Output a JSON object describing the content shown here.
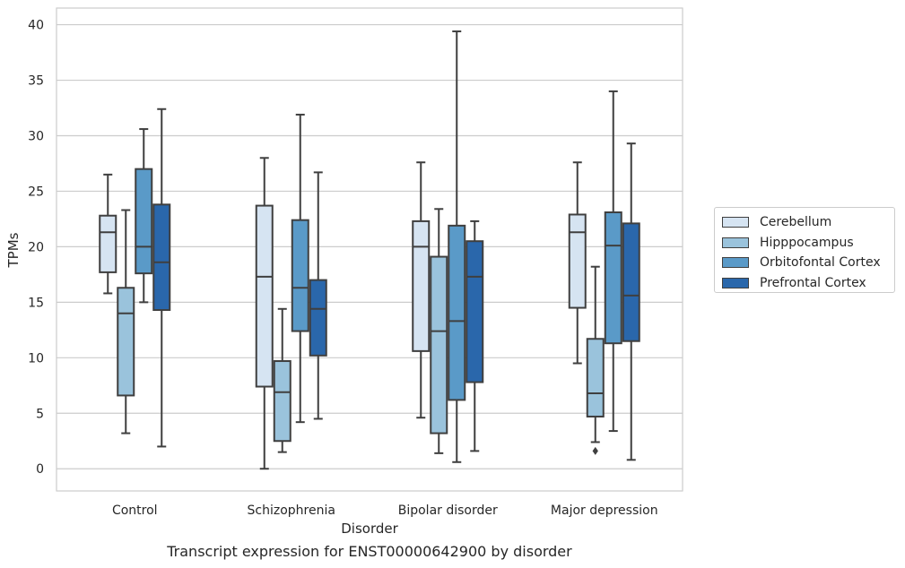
{
  "caption": "Transcript expression for ENST00000642900 by disorder",
  "chart_data": {
    "type": "boxplot",
    "xlabel": "Disorder",
    "ylabel": "TPMs",
    "ylim": [
      -2,
      41.5
    ],
    "yticks": [
      0,
      5,
      10,
      15,
      20,
      25,
      30,
      35,
      40
    ],
    "grid": "horizontal",
    "legend_position": "right",
    "categories": [
      "Control",
      "Schizophrenia",
      "Bipolar disorder",
      "Major depression"
    ],
    "series": [
      {
        "name": "Cerebellum",
        "color": "#d6e4f2",
        "boxes": [
          {
            "whisker_low": 15.8,
            "q1": 17.7,
            "median": 21.3,
            "q3": 22.8,
            "whisker_high": 26.5,
            "outliers": []
          },
          {
            "whisker_low": 0.0,
            "q1": 7.4,
            "median": 17.3,
            "q3": 23.7,
            "whisker_high": 28.0,
            "outliers": []
          },
          {
            "whisker_low": 4.6,
            "q1": 10.6,
            "median": 20.0,
            "q3": 22.3,
            "whisker_high": 27.6,
            "outliers": []
          },
          {
            "whisker_low": 9.5,
            "q1": 14.5,
            "median": 21.3,
            "q3": 22.9,
            "whisker_high": 27.6,
            "outliers": []
          }
        ]
      },
      {
        "name": "Hipppocampus",
        "color": "#9ac3dc",
        "boxes": [
          {
            "whisker_low": 3.2,
            "q1": 6.6,
            "median": 14.0,
            "q3": 16.3,
            "whisker_high": 23.3,
            "outliers": []
          },
          {
            "whisker_low": 1.5,
            "q1": 2.5,
            "median": 6.9,
            "q3": 9.7,
            "whisker_high": 14.4,
            "outliers": []
          },
          {
            "whisker_low": 1.4,
            "q1": 3.2,
            "median": 12.4,
            "q3": 19.1,
            "whisker_high": 23.4,
            "outliers": []
          },
          {
            "whisker_low": 2.4,
            "q1": 4.7,
            "median": 6.8,
            "q3": 11.7,
            "whisker_high": 18.2,
            "outliers": [
              1.6
            ]
          }
        ]
      },
      {
        "name": "Orbitofontal Cortex",
        "color": "#5a9ac8",
        "boxes": [
          {
            "whisker_low": 15.0,
            "q1": 17.6,
            "median": 20.0,
            "q3": 27.0,
            "whisker_high": 30.6,
            "outliers": []
          },
          {
            "whisker_low": 4.2,
            "q1": 12.4,
            "median": 16.3,
            "q3": 22.4,
            "whisker_high": 31.9,
            "outliers": []
          },
          {
            "whisker_low": 0.6,
            "q1": 6.2,
            "median": 13.3,
            "q3": 21.9,
            "whisker_high": 39.4,
            "outliers": []
          },
          {
            "whisker_low": 3.4,
            "q1": 11.3,
            "median": 20.1,
            "q3": 23.1,
            "whisker_high": 34.0,
            "outliers": []
          }
        ]
      },
      {
        "name": "Prefrontal Cortex",
        "color": "#2a67ab",
        "boxes": [
          {
            "whisker_low": 2.0,
            "q1": 14.3,
            "median": 18.6,
            "q3": 23.8,
            "whisker_high": 32.4,
            "outliers": []
          },
          {
            "whisker_low": 4.5,
            "q1": 10.2,
            "median": 14.4,
            "q3": 17.0,
            "whisker_high": 26.7,
            "outliers": []
          },
          {
            "whisker_low": 1.6,
            "q1": 7.8,
            "median": 17.3,
            "q3": 20.5,
            "whisker_high": 22.3,
            "outliers": []
          },
          {
            "whisker_low": 0.8,
            "q1": 11.5,
            "median": 15.6,
            "q3": 22.1,
            "whisker_high": 29.3,
            "outliers": []
          }
        ]
      }
    ]
  }
}
